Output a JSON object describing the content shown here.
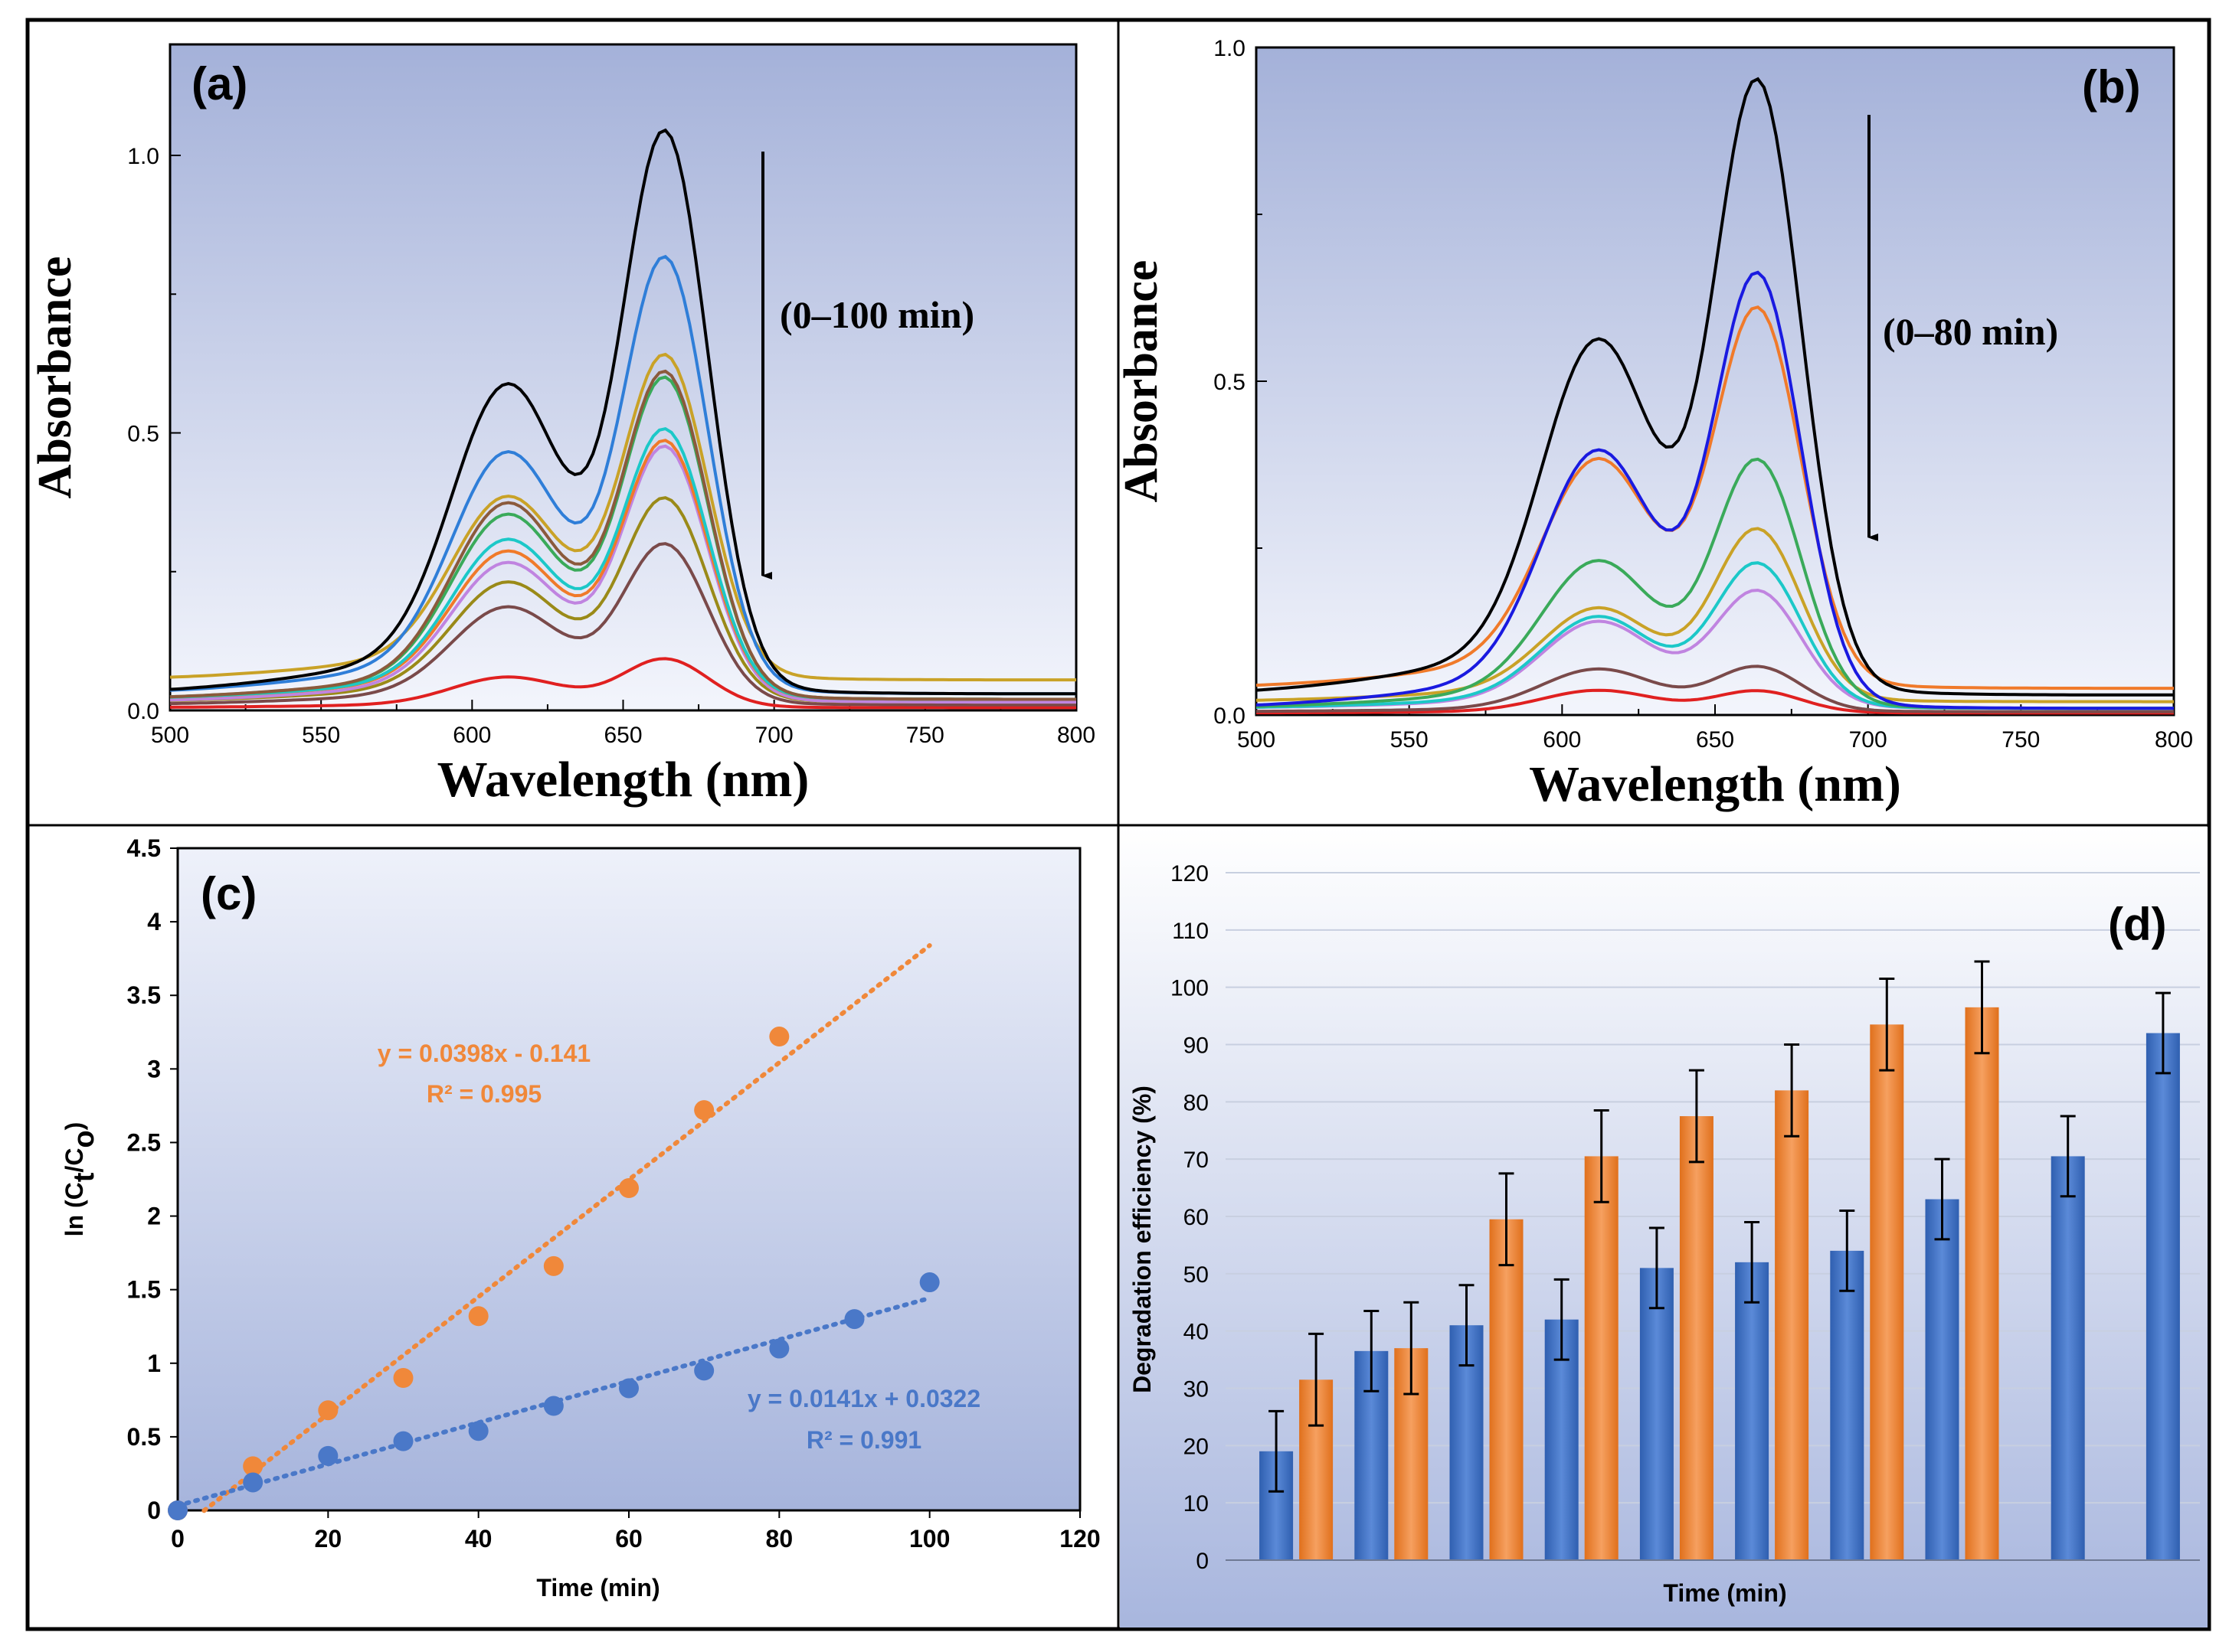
{
  "chart_data": [
    {
      "panel": "(a)",
      "type": "line",
      "xlabel": "Wavelength (nm)",
      "ylabel": "Absorbance",
      "xlim": [
        500,
        800
      ],
      "ylim": [
        0,
        1.2
      ],
      "xticks": [
        500,
        550,
        600,
        650,
        700,
        750,
        800
      ],
      "yticks": [
        0.0,
        0.5,
        1.0
      ],
      "annotation": "(0–100 min)",
      "series": [
        {
          "color": "#000000",
          "peak": 1.01,
          "shoulder": 0.53,
          "base": 0.03
        },
        {
          "color": "#2f7ed8",
          "peak": 0.79,
          "shoulder": 0.42,
          "base": 0.03
        },
        {
          "color": "#c9a227",
          "peak": 0.62,
          "shoulder": 0.35,
          "base": 0.055
        },
        {
          "color": "#8b5a3c",
          "peak": 0.59,
          "shoulder": 0.34,
          "base": 0.02
        },
        {
          "color": "#3aaa5a",
          "peak": 0.58,
          "shoulder": 0.32,
          "base": 0.02
        },
        {
          "color": "#1cc8c8",
          "peak": 0.49,
          "shoulder": 0.28,
          "base": 0.02
        },
        {
          "color": "#f07a2a",
          "peak": 0.47,
          "shoulder": 0.26,
          "base": 0.02
        },
        {
          "color": "#c084e0",
          "peak": 0.46,
          "shoulder": 0.24,
          "base": 0.015
        },
        {
          "color": "#9a8a18",
          "peak": 0.37,
          "shoulder": 0.21,
          "base": 0.015
        },
        {
          "color": "#7a4a4a",
          "peak": 0.29,
          "shoulder": 0.17,
          "base": 0.01
        },
        {
          "color": "#e02020",
          "peak": 0.09,
          "shoulder": 0.055,
          "base": 0.005
        }
      ]
    },
    {
      "panel": "(b)",
      "type": "line",
      "xlabel": "Wavelength (nm)",
      "ylabel": "Absorbance",
      "xlim": [
        500,
        800
      ],
      "ylim": [
        0,
        1.0
      ],
      "xticks": [
        500,
        550,
        600,
        650,
        700,
        750,
        800
      ],
      "yticks": [
        0.0,
        0.5,
        1.0
      ],
      "annotation": "(0–80 min)",
      "series": [
        {
          "color": "#000000",
          "peak": 0.92,
          "shoulder": 0.51,
          "base": 0.03
        },
        {
          "color": "#1a1ae0",
          "peak": 0.64,
          "shoulder": 0.36,
          "base": 0.01
        },
        {
          "color": "#f07a2a",
          "peak": 0.59,
          "shoulder": 0.35,
          "base": 0.04
        },
        {
          "color": "#3aaa5a",
          "peak": 0.37,
          "shoulder": 0.21,
          "base": 0.01
        },
        {
          "color": "#c9a227",
          "peak": 0.27,
          "shoulder": 0.145,
          "base": 0.02
        },
        {
          "color": "#1cc8c8",
          "peak": 0.22,
          "shoulder": 0.135,
          "base": 0.01
        },
        {
          "color": "#c084e0",
          "peak": 0.18,
          "shoulder": 0.13,
          "base": 0.01
        },
        {
          "color": "#7a4a4a",
          "peak": 0.07,
          "shoulder": 0.065,
          "base": 0.005
        },
        {
          "color": "#e02020",
          "peak": 0.035,
          "shoulder": 0.035,
          "base": 0.003
        }
      ]
    },
    {
      "panel": "(c)",
      "type": "scatter",
      "xlabel": "Time (min)",
      "ylabel": "ln (Ct/Co)",
      "xlim": [
        0,
        120
      ],
      "ylim": [
        0,
        4.5
      ],
      "xticks": [
        0,
        20,
        40,
        60,
        80,
        100,
        120
      ],
      "yticks": [
        0,
        0.5,
        1,
        1.5,
        2,
        2.5,
        3,
        3.5,
        4,
        4.5
      ],
      "series": [
        {
          "color": "#f0883a",
          "x": [
            0,
            10,
            20,
            30,
            40,
            50,
            60,
            70,
            80
          ],
          "y": [
            0,
            0.3,
            0.68,
            0.9,
            1.32,
            1.66,
            2.19,
            2.72,
            3.22
          ],
          "fit": {
            "slope": 0.0398,
            "intercept": -0.141,
            "x_range": [
              3.5,
              100
            ]
          },
          "equation": "y = 0.0398x - 0.141",
          "r2": "R² = 0.995"
        },
        {
          "color": "#4a78c8",
          "x": [
            0,
            10,
            20,
            30,
            40,
            50,
            60,
            70,
            80,
            90,
            100
          ],
          "y": [
            0,
            0.19,
            0.37,
            0.47,
            0.54,
            0.71,
            0.83,
            0.95,
            1.1,
            1.3,
            1.55
          ],
          "fit": {
            "slope": 0.0141,
            "intercept": 0.0322,
            "x_range": [
              0,
              100
            ]
          },
          "equation": "y = 0.0141x + 0.0322",
          "r2": "R² = 0.991"
        }
      ]
    },
    {
      "panel": "(d)",
      "type": "bar",
      "xlabel": "Time (min)",
      "ylabel": "Degradation efficiency (%)",
      "ylim": [
        0,
        120
      ],
      "yticks": [
        0,
        10,
        20,
        30,
        40,
        50,
        60,
        70,
        80,
        90,
        100,
        110,
        120
      ],
      "grid": true,
      "groups": [
        {
          "blue": 19,
          "orange": 31.5
        },
        {
          "blue": 36.5,
          "orange": 37
        },
        {
          "blue": 41,
          "orange": 59.5
        },
        {
          "blue": 42,
          "orange": 70.5
        },
        {
          "blue": 51,
          "orange": 77.5
        },
        {
          "blue": 52,
          "orange": 82
        },
        {
          "blue": 54,
          "orange": 93.5
        },
        {
          "blue": 63,
          "orange": 96.5
        },
        {
          "blue": 70.5,
          "orange": null
        },
        {
          "blue": 92,
          "orange": null
        }
      ],
      "error": 7,
      "colors": {
        "blue": "#4a78c8",
        "orange": "#f0883a"
      }
    }
  ]
}
